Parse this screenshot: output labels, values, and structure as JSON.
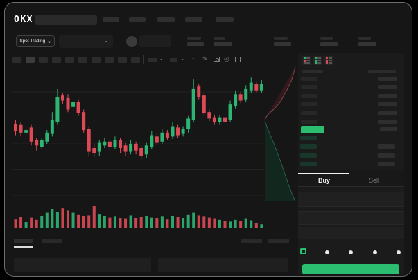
{
  "brand": {
    "logo": "OKX"
  },
  "nav": {
    "item_count": 5
  },
  "trading_controls": {
    "market_selector": "Spot Trading",
    "market_selector_chevron": "⌄",
    "pair_selector_chevron": "⌄"
  },
  "market_stats": {
    "group_count": 5
  },
  "chart_toolbar": {
    "timeframe_count": 10,
    "active_timeframe_index": 1,
    "squiggle_glyph": "~",
    "draw_glyph": "✎",
    "settings_glyph": "◎"
  },
  "chart_data": {
    "type": "candlestick",
    "title": "",
    "xlabel": "",
    "ylabel": "",
    "note": "no axis labels visible; prices normalized 0-100 estimated from pixels",
    "grid": true,
    "gridline_count": 5,
    "colors": {
      "up": "#2db574",
      "down": "#dd4a56"
    },
    "candles_ochl": [
      [
        59,
        53,
        62,
        50
      ],
      [
        58,
        52,
        60,
        49
      ],
      [
        52,
        54,
        56,
        50
      ],
      [
        56,
        45,
        58,
        42
      ],
      [
        46,
        42,
        48,
        38
      ],
      [
        41,
        46,
        48,
        39
      ],
      [
        45,
        52,
        54,
        43
      ],
      [
        51,
        62,
        68,
        49
      ],
      [
        60,
        80,
        86,
        58
      ],
      [
        81,
        77,
        83,
        74
      ],
      [
        79,
        70,
        82,
        68
      ],
      [
        72,
        76,
        78,
        70
      ],
      [
        76,
        67,
        78,
        65
      ],
      [
        68,
        54,
        70,
        52
      ],
      [
        55,
        37,
        57,
        34
      ],
      [
        40,
        36,
        43,
        33
      ],
      [
        37,
        44,
        46,
        34
      ],
      [
        42,
        45,
        48,
        40
      ],
      [
        45,
        41,
        47,
        38
      ],
      [
        41,
        46,
        49,
        39
      ],
      [
        46,
        40,
        48,
        36
      ],
      [
        42,
        37,
        44,
        34
      ],
      [
        37,
        43,
        46,
        35
      ],
      [
        43,
        38,
        45,
        35
      ],
      [
        40,
        34,
        42,
        31
      ],
      [
        35,
        42,
        44,
        32
      ],
      [
        41,
        50,
        53,
        39
      ],
      [
        49,
        44,
        51,
        42
      ],
      [
        45,
        52,
        55,
        43
      ],
      [
        52,
        48,
        54,
        46
      ],
      [
        49,
        57,
        60,
        47
      ],
      [
        56,
        50,
        58,
        48
      ],
      [
        51,
        55,
        57,
        49
      ],
      [
        55,
        63,
        65,
        52
      ],
      [
        62,
        86,
        94,
        60
      ],
      [
        88,
        80,
        90,
        78
      ],
      [
        81,
        67,
        83,
        65
      ],
      [
        68,
        63,
        70,
        61
      ],
      [
        64,
        60,
        66,
        58
      ],
      [
        60,
        64,
        66,
        58
      ],
      [
        64,
        60,
        66,
        57
      ],
      [
        62,
        74,
        77,
        60
      ],
      [
        73,
        82,
        85,
        71
      ],
      [
        82,
        77,
        84,
        75
      ],
      [
        78,
        86,
        89,
        76
      ],
      [
        85,
        91,
        95,
        83
      ],
      [
        90,
        85,
        92,
        83
      ],
      [
        85,
        90,
        93,
        83
      ]
    ],
    "volumes": [
      40,
      50,
      28,
      48,
      38,
      55,
      70,
      85,
      75,
      90,
      80,
      70,
      60,
      55,
      58,
      100,
      62,
      55,
      48,
      52,
      45,
      42,
      58,
      46,
      50,
      55,
      48,
      44,
      52,
      40,
      56,
      50,
      44,
      60,
      70,
      58,
      52,
      48,
      42,
      38,
      34,
      30,
      38,
      34,
      42,
      36,
      24,
      18
    ],
    "depth_profile": {
      "ask_curve": [
        [
          410,
          2
        ],
        [
          405,
          20
        ],
        [
          398,
          35
        ],
        [
          388,
          53
        ],
        [
          379,
          63
        ],
        [
          370,
          71
        ],
        [
          366,
          78
        ]
      ],
      "bid_curve": [
        [
          366,
          80
        ],
        [
          372,
          96
        ],
        [
          378,
          110
        ],
        [
          384,
          126
        ],
        [
          390,
          142
        ],
        [
          396,
          160
        ],
        [
          402,
          177
        ],
        [
          408,
          192
        ],
        [
          410,
          196
        ]
      ],
      "ask_fill": "#34191c",
      "bid_fill": "#12281e",
      "ask_line": "#7c464c",
      "bid_line": "#2e604b"
    }
  },
  "order_book": {
    "view_toggles": [
      "combined-view",
      "bids-view",
      "asks-view"
    ],
    "ask_row_count": 6,
    "bid_row_count": 4,
    "last_price_color": "#2bbd70"
  },
  "trade_form": {
    "tabs": [
      {
        "label": "Buy",
        "active": true
      },
      {
        "label": "Sell",
        "active": false
      }
    ],
    "field_count": 3,
    "slider": {
      "stop_count": 5,
      "active_stop": 0
    },
    "submit_label": "",
    "submit_color": "#2bbd70"
  },
  "bottom_panel": {
    "tab_count": 2,
    "active_tab_index": 0,
    "right_item_count": 2,
    "box_count": 2
  },
  "colors": {
    "background": "#161616",
    "accent_green": "#2bbd70"
  }
}
